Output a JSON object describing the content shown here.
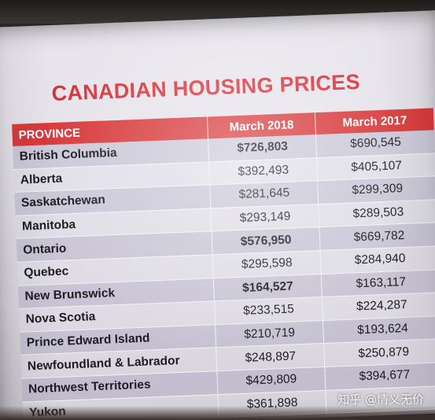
{
  "title": "CANADIAN HOUSING PRICES",
  "table": {
    "headers": {
      "province": "PROVINCE",
      "march_2018": "March 2018",
      "march_2017": "March 2017"
    },
    "rows": [
      {
        "province": "British Columbia",
        "march_2018": "$726,803",
        "march_2017": "$690,545",
        "highlight": true
      },
      {
        "province": "Alberta",
        "march_2018": "$392,493",
        "march_2017": "$405,107",
        "highlight": false
      },
      {
        "province": "Saskatchewan",
        "march_2018": "$281,645",
        "march_2017": "$299,309",
        "highlight": false
      },
      {
        "province": "Manitoba",
        "march_2018": "$293,149",
        "march_2017": "$289,503",
        "highlight": false
      },
      {
        "province": "Ontario",
        "march_2018": "$576,950",
        "march_2017": "$669,782",
        "highlight": true
      },
      {
        "province": "Quebec",
        "march_2018": "$295,598",
        "march_2017": "$284,940",
        "highlight": false
      },
      {
        "province": "New Brunswick",
        "march_2018": "$164,527",
        "march_2017": "$163,117",
        "highlight": true
      },
      {
        "province": "Nova Scotia",
        "march_2018": "$233,515",
        "march_2017": "$224,287",
        "highlight": false
      },
      {
        "province": "Prince Edward Island",
        "march_2018": "$210,719",
        "march_2017": "$193,624",
        "highlight": false
      },
      {
        "province": "Newfoundland & Labrador",
        "march_2018": "$248,897",
        "march_2017": "$250,879",
        "highlight": false
      },
      {
        "province": "Northwest Territories",
        "march_2018": "$429,809",
        "march_2017": "$394,677",
        "highlight": false
      },
      {
        "province": "Yukon",
        "march_2018": "$361,898",
        "march_2017": "",
        "highlight": false
      }
    ]
  },
  "watermark": "知乎 @情义无价",
  "colors": {
    "title": "#d8313a",
    "header_bg": "#d83a3c",
    "row_odd": "#b8b4cc",
    "row_even": "#e0dfe8"
  }
}
